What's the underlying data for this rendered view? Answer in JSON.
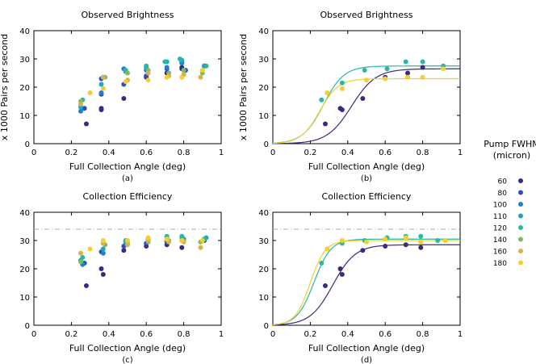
{
  "colors": {
    "60": "#3b2a7d",
    "80": "#2c4dbf",
    "100": "#1f7fd6",
    "110": "#1aa6c8",
    "120": "#2bb7a2",
    "140": "#7dbb62",
    "160": "#d9b04a",
    "180": "#f5cf2a",
    "reference": "#aaaaaa"
  },
  "legend": {
    "title_line1": "Pump FWHM",
    "title_line2": "(micron)",
    "entries": [
      "60",
      "80",
      "100",
      "110",
      "120",
      "140",
      "160",
      "180"
    ]
  },
  "chart_data": [
    {
      "id": "a",
      "type": "scatter",
      "title": "Observed Brightness",
      "xlabel": "Full Collection Angle (deg)",
      "ylabel": "x 1000 Pairs per second",
      "caption": "(a)",
      "xlim": [
        0,
        1
      ],
      "ylim": [
        0,
        40
      ],
      "xticks": [
        "0",
        "0.2",
        "0.4",
        "0.6",
        "0.8",
        "1"
      ],
      "yticks": [
        "0",
        "10",
        "20",
        "30",
        "40"
      ],
      "series": [
        {
          "name": "60",
          "points": [
            [
              0.28,
              7
            ],
            [
              0.36,
              12.5
            ],
            [
              0.36,
              12
            ],
            [
              0.48,
              16
            ],
            [
              0.6,
              23.5
            ],
            [
              0.71,
              25
            ],
            [
              0.79,
              27
            ],
            [
              0.79,
              26.5
            ]
          ]
        },
        {
          "name": "80",
          "points": [
            [
              0.27,
              12.5
            ],
            [
              0.36,
              17.5
            ],
            [
              0.36,
              23
            ],
            [
              0.48,
              21
            ],
            [
              0.6,
              24
            ],
            [
              0.71,
              26.5
            ],
            [
              0.79,
              29
            ],
            [
              0.81,
              26
            ],
            [
              0.91,
              27.5
            ]
          ]
        },
        {
          "name": "100",
          "points": [
            [
              0.25,
              11.5
            ],
            [
              0.36,
              18
            ],
            [
              0.48,
              26.5
            ],
            [
              0.6,
              26
            ],
            [
              0.71,
              27
            ],
            [
              0.79,
              28.5
            ],
            [
              0.91,
              27.5
            ]
          ]
        },
        {
          "name": "110",
          "points": [
            [
              0.25,
              13
            ],
            [
              0.36,
              21
            ],
            [
              0.49,
              25.5
            ],
            [
              0.6,
              27
            ],
            [
              0.71,
              29
            ],
            [
              0.79,
              29.5
            ],
            [
              0.91,
              27.5
            ]
          ]
        },
        {
          "name": "120",
          "points": [
            [
              0.26,
              15.5
            ],
            [
              0.37,
              23.5
            ],
            [
              0.49,
              26
            ],
            [
              0.6,
              27.5
            ],
            [
              0.7,
              29
            ],
            [
              0.78,
              30
            ],
            [
              0.92,
              27.5
            ]
          ]
        },
        {
          "name": "140",
          "points": [
            [
              0.25,
              15
            ],
            [
              0.38,
              23.5
            ],
            [
              0.5,
              25
            ],
            [
              0.61,
              26
            ],
            [
              0.72,
              25
            ],
            [
              0.8,
              26
            ],
            [
              0.9,
              25
            ]
          ]
        },
        {
          "name": "160",
          "points": [
            [
              0.25,
              14
            ],
            [
              0.37,
              23.5
            ],
            [
              0.5,
              22.5
            ],
            [
              0.61,
              25
            ],
            [
              0.72,
              24
            ],
            [
              0.8,
              24.5
            ],
            [
              0.89,
              23.5
            ]
          ]
        },
        {
          "name": "180",
          "points": [
            [
              0.3,
              18
            ],
            [
              0.37,
              19.5
            ],
            [
              0.49,
              22
            ],
            [
              0.61,
              22.5
            ],
            [
              0.71,
              23.5
            ],
            [
              0.79,
              23.5
            ],
            [
              0.9,
              26
            ]
          ]
        }
      ]
    },
    {
      "id": "b",
      "type": "scatter",
      "title": "Observed Brightness",
      "xlabel": "Full Collection Angle (deg)",
      "ylabel": "x 1000 Pairs per second",
      "caption": "(b)",
      "xlim": [
        0,
        1
      ],
      "ylim": [
        0,
        40
      ],
      "xticks": [
        "0",
        "0.2",
        "0.4",
        "0.6",
        "0.8",
        "1"
      ],
      "yticks": [
        "0",
        "10",
        "20",
        "30",
        "40"
      ],
      "series": [
        {
          "name": "60",
          "points": [
            [
              0.28,
              7
            ],
            [
              0.36,
              12.5
            ],
            [
              0.37,
              12
            ],
            [
              0.48,
              16
            ],
            [
              0.6,
              23.5
            ],
            [
              0.72,
              25
            ],
            [
              0.8,
              27
            ]
          ],
          "curve": {
            "max": 26.5,
            "half": 0.42,
            "width": 0.065
          }
        },
        {
          "name": "120",
          "points": [
            [
              0.26,
              15.5
            ],
            [
              0.37,
              21.5
            ],
            [
              0.49,
              26
            ],
            [
              0.61,
              26.5
            ],
            [
              0.71,
              29
            ],
            [
              0.8,
              29
            ],
            [
              0.91,
              27.5
            ]
          ],
          "curve": {
            "max": 27.5,
            "half": 0.27,
            "width": 0.055
          }
        },
        {
          "name": "180",
          "points": [
            [
              0.29,
              18
            ],
            [
              0.37,
              19.5
            ],
            [
              0.5,
              22.5
            ],
            [
              0.6,
              23
            ],
            [
              0.72,
              23.5
            ],
            [
              0.8,
              23.5
            ],
            [
              0.91,
              26.5
            ]
          ],
          "curve": {
            "max": 23,
            "half": 0.25,
            "width": 0.05
          }
        }
      ]
    },
    {
      "id": "c",
      "type": "scatter",
      "title": "Collection Efficiency",
      "xlabel": "Full Collection Angle (deg)",
      "ylabel": "",
      "caption": "(c)",
      "xlim": [
        0,
        1
      ],
      "ylim": [
        0,
        40
      ],
      "xticks": [
        "0",
        "0.2",
        "0.4",
        "0.6",
        "0.8",
        "1"
      ],
      "yticks": [
        "0",
        "10",
        "20",
        "30",
        "40"
      ],
      "reference_line": 34,
      "series": [
        {
          "name": "60",
          "points": [
            [
              0.28,
              14
            ],
            [
              0.36,
              20
            ],
            [
              0.37,
              18
            ],
            [
              0.48,
              26.5
            ],
            [
              0.6,
              28
            ],
            [
              0.71,
              28.5
            ],
            [
              0.79,
              27.5
            ]
          ]
        },
        {
          "name": "80",
          "points": [
            [
              0.27,
              22
            ],
            [
              0.36,
              26
            ],
            [
              0.48,
              28
            ],
            [
              0.6,
              29
            ],
            [
              0.71,
              29.5
            ],
            [
              0.79,
              30
            ],
            [
              0.91,
              30
            ]
          ]
        },
        {
          "name": "100",
          "points": [
            [
              0.26,
              21.5
            ],
            [
              0.37,
              25.5
            ],
            [
              0.49,
              29
            ],
            [
              0.61,
              30
            ],
            [
              0.71,
              30
            ],
            [
              0.8,
              30.5
            ],
            [
              0.91,
              30.5
            ]
          ]
        },
        {
          "name": "110",
          "points": [
            [
              0.25,
              23
            ],
            [
              0.37,
              27
            ],
            [
              0.49,
              29.5
            ],
            [
              0.61,
              30.5
            ],
            [
              0.71,
              31
            ],
            [
              0.79,
              31
            ],
            [
              0.92,
              31
            ]
          ]
        },
        {
          "name": "120",
          "points": [
            [
              0.26,
              24
            ],
            [
              0.37,
              29
            ],
            [
              0.49,
              30
            ],
            [
              0.61,
              30.5
            ],
            [
              0.71,
              31.5
            ],
            [
              0.79,
              31.5
            ],
            [
              0.91,
              30.5
            ]
          ]
        },
        {
          "name": "140",
          "points": [
            [
              0.25,
              22.5
            ],
            [
              0.38,
              28.5
            ],
            [
              0.5,
              29
            ],
            [
              0.61,
              29.5
            ],
            [
              0.72,
              30
            ],
            [
              0.8,
              30
            ],
            [
              0.89,
              29.5
            ]
          ]
        },
        {
          "name": "160",
          "points": [
            [
              0.25,
              25.5
            ],
            [
              0.37,
              29
            ],
            [
              0.5,
              28.5
            ],
            [
              0.61,
              30
            ],
            [
              0.72,
              29.5
            ],
            [
              0.8,
              29.5
            ],
            [
              0.89,
              27.5
            ]
          ]
        },
        {
          "name": "180",
          "points": [
            [
              0.3,
              27
            ],
            [
              0.37,
              30
            ],
            [
              0.5,
              30
            ],
            [
              0.61,
              31
            ],
            [
              0.71,
              30.5
            ],
            [
              0.79,
              30
            ],
            [
              0.9,
              30
            ]
          ]
        }
      ]
    },
    {
      "id": "d",
      "type": "scatter",
      "title": "Collection Efficiency",
      "xlabel": "Full Collection Angle (deg)",
      "ylabel": "",
      "caption": "(d)",
      "xlim": [
        0,
        1
      ],
      "ylim": [
        0,
        40
      ],
      "xticks": [
        "0",
        "0.2",
        "0.4",
        "0.6",
        "0.8",
        "1"
      ],
      "yticks": [
        "0",
        "10",
        "20",
        "30",
        "40"
      ],
      "reference_line": 34,
      "series": [
        {
          "name": "60",
          "points": [
            [
              0.28,
              14
            ],
            [
              0.36,
              20
            ],
            [
              0.37,
              18
            ],
            [
              0.48,
              26.5
            ],
            [
              0.6,
              28
            ],
            [
              0.71,
              28.5
            ],
            [
              0.79,
              27.5
            ]
          ],
          "curve": {
            "max": 28.5,
            "half": 0.32,
            "width": 0.06
          }
        },
        {
          "name": "120",
          "points": [
            [
              0.26,
              22
            ],
            [
              0.37,
              29
            ],
            [
              0.49,
              30
            ],
            [
              0.61,
              31
            ],
            [
              0.71,
              31.5
            ],
            [
              0.79,
              31.5
            ],
            [
              0.88,
              30
            ]
          ],
          "curve": {
            "max": 30.5,
            "half": 0.22,
            "width": 0.045
          }
        },
        {
          "name": "180",
          "points": [
            [
              0.29,
              27
            ],
            [
              0.37,
              30
            ],
            [
              0.5,
              29.5
            ],
            [
              0.6,
              30.5
            ],
            [
              0.71,
              31
            ],
            [
              0.79,
              29.5
            ],
            [
              0.92,
              30
            ]
          ],
          "curve": {
            "max": 30,
            "half": 0.2,
            "width": 0.04
          }
        }
      ]
    }
  ]
}
